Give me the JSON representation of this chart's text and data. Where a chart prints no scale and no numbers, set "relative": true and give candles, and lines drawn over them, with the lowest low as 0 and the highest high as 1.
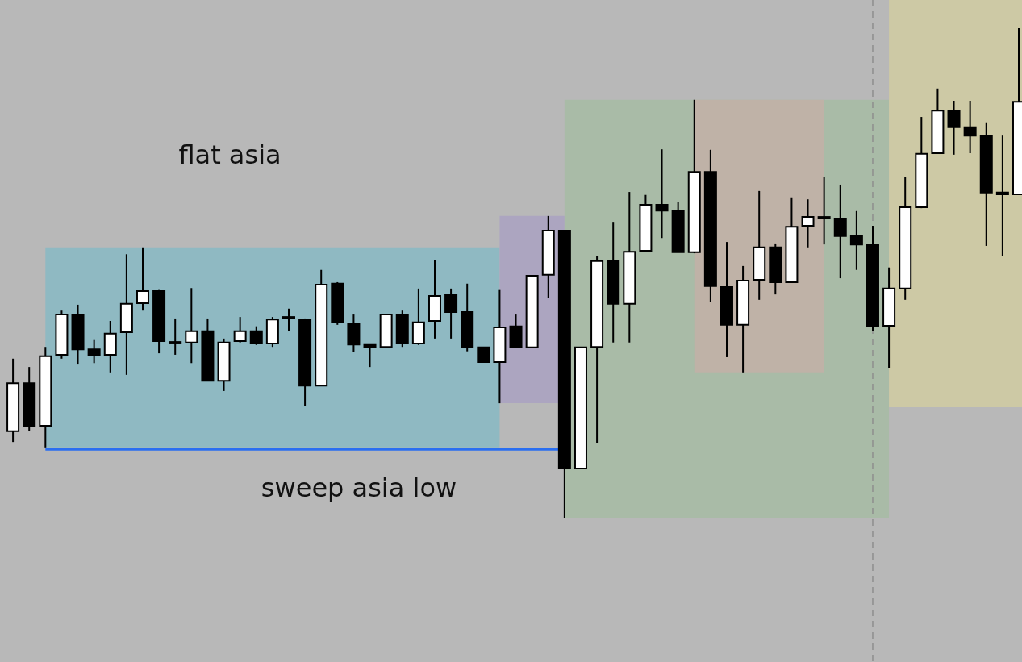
{
  "chart_data": {
    "type": "candlestick",
    "relative": true,
    "categories": [
      null,
      null,
      null,
      null,
      null,
      null,
      null,
      null,
      null,
      null,
      null,
      null,
      null,
      null,
      null,
      null,
      null,
      null,
      null,
      null,
      null,
      null,
      null,
      null,
      null,
      null,
      null,
      null,
      null,
      null,
      null,
      null,
      null,
      null,
      null,
      null,
      null,
      null,
      null,
      null,
      null,
      null,
      null,
      null,
      null,
      null,
      null,
      null,
      null,
      null,
      null,
      null,
      null,
      null,
      null,
      null,
      null,
      null,
      null,
      null,
      null,
      null,
      null
    ],
    "ohlc": [
      [
        0.178,
        0.326,
        0.156,
        0.276
      ],
      [
        0.276,
        0.309,
        0.178,
        0.189
      ],
      [
        0.189,
        0.35,
        0.145,
        0.331
      ],
      [
        0.334,
        0.424,
        0.326,
        0.416
      ],
      [
        0.416,
        0.436,
        0.314,
        0.345
      ],
      [
        0.345,
        0.364,
        0.317,
        0.334
      ],
      [
        0.334,
        0.403,
        0.298,
        0.377
      ],
      [
        0.38,
        0.539,
        0.293,
        0.438
      ],
      [
        0.439,
        0.553,
        0.424,
        0.464
      ],
      [
        0.464,
        0.466,
        0.337,
        0.362
      ],
      [
        0.36,
        0.408,
        0.334,
        0.357
      ],
      [
        0.359,
        0.47,
        0.317,
        0.382
      ],
      [
        0.382,
        0.408,
        0.28,
        0.281
      ],
      [
        0.281,
        0.367,
        0.26,
        0.359
      ],
      [
        0.362,
        0.411,
        0.359,
        0.382
      ],
      [
        0.382,
        0.392,
        0.354,
        0.357
      ],
      [
        0.357,
        0.411,
        0.35,
        0.406
      ],
      [
        0.411,
        0.428,
        0.383,
        0.41
      ],
      [
        0.405,
        0.408,
        0.23,
        0.271
      ],
      [
        0.271,
        0.507,
        0.271,
        0.477
      ],
      [
        0.479,
        0.482,
        0.395,
        0.4
      ],
      [
        0.398,
        0.416,
        0.339,
        0.355
      ],
      [
        0.354,
        0.355,
        0.309,
        0.35
      ],
      [
        0.35,
        0.416,
        0.35,
        0.416
      ],
      [
        0.416,
        0.424,
        0.35,
        0.357
      ],
      [
        0.357,
        0.469,
        0.354,
        0.4
      ],
      [
        0.403,
        0.528,
        0.367,
        0.454
      ],
      [
        0.456,
        0.469,
        0.367,
        0.421
      ],
      [
        0.421,
        0.479,
        0.341,
        0.349
      ],
      [
        0.349,
        0.35,
        0.319,
        0.319
      ],
      [
        0.319,
        0.466,
        0.235,
        0.39
      ],
      [
        0.392,
        0.416,
        0.347,
        0.349
      ],
      [
        0.349,
        0.495,
        0.349,
        0.495
      ],
      [
        0.497,
        0.617,
        0.449,
        0.587
      ],
      [
        0.587,
        0.589,
        0,
        0.102
      ],
      [
        0.102,
        0.349,
        0.102,
        0.349
      ],
      [
        0.35,
        0.535,
        0.153,
        0.525
      ],
      [
        0.525,
        0.605,
        0.359,
        0.438
      ],
      [
        0.438,
        0.666,
        0.359,
        0.544
      ],
      [
        0.546,
        0.66,
        0.544,
        0.64
      ],
      [
        0.64,
        0.753,
        0.572,
        0.628
      ],
      [
        0.627,
        0.646,
        0.543,
        0.543
      ],
      [
        0.543,
        0.854,
        0.541,
        0.707
      ],
      [
        0.707,
        0.752,
        0.441,
        0.474
      ],
      [
        0.472,
        0.564,
        0.329,
        0.395
      ],
      [
        0.395,
        0.515,
        0.298,
        0.485
      ],
      [
        0.487,
        0.668,
        0.446,
        0.553
      ],
      [
        0.553,
        0.561,
        0.457,
        0.482
      ],
      [
        0.482,
        0.655,
        0.482,
        0.595
      ],
      [
        0.597,
        0.651,
        0.553,
        0.615
      ],
      [
        0.615,
        0.696,
        0.559,
        0.612
      ],
      [
        0.612,
        0.681,
        0.49,
        0.576
      ],
      [
        0.576,
        0.627,
        0.507,
        0.559
      ],
      [
        0.559,
        0.597,
        0.383,
        0.392
      ],
      [
        0.393,
        0.512,
        0.306,
        0.469
      ],
      [
        0.469,
        0.696,
        0.446,
        0.635
      ],
      [
        0.635,
        0.819,
        0.633,
        0.744
      ],
      [
        0.745,
        0.877,
        0.744,
        0.832
      ],
      [
        0.832,
        0.852,
        0.742,
        0.798
      ],
      [
        0.798,
        0.852,
        0.745,
        0.781
      ],
      [
        0.781,
        0.808,
        0.556,
        0.665
      ],
      [
        0.665,
        0.781,
        0.535,
        0.661
      ],
      [
        0.661,
        1,
        0.661,
        0.85
      ]
    ],
    "colors": [
      "#ffffff",
      "#000000",
      "#ffffff",
      "#ffffff",
      "#000000",
      "#000000",
      "#ffffff",
      "#ffffff",
      "#ffffff",
      "#000000",
      "#000000",
      "#ffffff",
      "#000000",
      "#ffffff",
      "#ffffff",
      "#000000",
      "#ffffff",
      "#000000",
      "#000000",
      "#ffffff",
      "#000000",
      "#000000",
      "#000000",
      "#ffffff",
      "#000000",
      "#ffffff",
      "#ffffff",
      "#000000",
      "#000000",
      "#000000",
      "#ffffff",
      "#000000",
      "#ffffff",
      "#ffffff",
      "#000000",
      "#ffffff",
      "#ffffff",
      "#000000",
      "#ffffff",
      "#ffffff",
      "#000000",
      "#000000",
      "#ffffff",
      "#000000",
      "#000000",
      "#ffffff",
      "#ffffff",
      "#000000",
      "#ffffff",
      "#ffffff",
      "#000000",
      "#000000",
      "#000000",
      "#000000",
      "#ffffff",
      "#ffffff",
      "#ffffff",
      "#ffffff",
      "#000000",
      "#000000",
      "#000000",
      "#000000",
      "#ffffff"
    ],
    "bands": [
      {
        "axis": "y",
        "from": 0.145,
        "to": 0.553,
        "color": "#8fb9c2"
      },
      {
        "axis": "y",
        "from": 0.235,
        "to": 0.617,
        "color": "#aca5c0"
      },
      {
        "axis": "y",
        "from": 0,
        "to": 0.854,
        "color": "#a9bba7"
      },
      {
        "axis": "y",
        "from": 0.298,
        "to": 0.854,
        "color": "#bfb2a7"
      }
    ],
    "ref_lines": [
      {
        "axis": "y",
        "value": 0.141,
        "color": "#2a6ef0",
        "line_style": "solid"
      }
    ],
    "annotations": [
      "flat asia",
      "sweep asia low"
    ]
  }
}
